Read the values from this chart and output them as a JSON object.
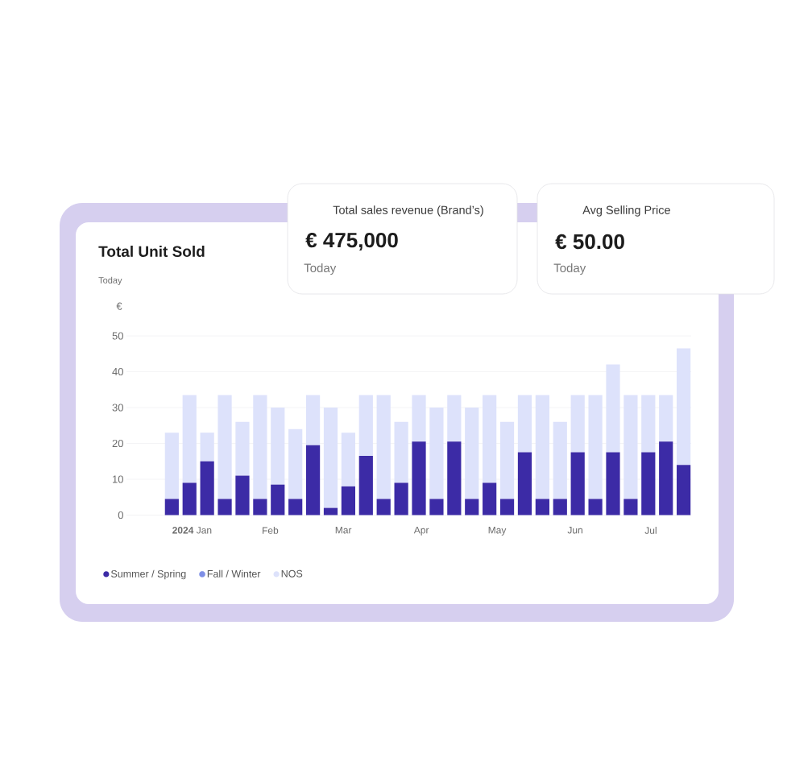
{
  "chart_data": [
    {
      "type": "other",
      "title": "Total sales revenue (Brand’s)",
      "annotations": [
        "€ 475,000",
        "Today"
      ]
    },
    {
      "type": "other",
      "title": "Avg Selling Price",
      "annotations": [
        "€ 50.00",
        "Today"
      ]
    },
    {
      "type": "bar",
      "title": "Total Unit Sold",
      "subtitle": "Today",
      "ylabel": "€",
      "stacked": true,
      "x": [
        "2023-12-24",
        "2023-12-31",
        "2024-01-07",
        "2024-01-14",
        "2024-01-21",
        "2024-01-28",
        "2024-02-04",
        "2024-02-11",
        "2024-02-18",
        "2024-02-25",
        "2024-03-03",
        "2024-03-10",
        "2024-03-17",
        "2024-03-24",
        "2024-03-31",
        "2024-04-07",
        "2024-04-14",
        "2024-04-21",
        "2024-04-28",
        "2024-05-05",
        "2024-05-12",
        "2024-05-19",
        "2024-05-26",
        "2024-06-02",
        "2024-06-09",
        "2024-06-16",
        "2024-06-23",
        "2024-06-30",
        "2024-07-07",
        "2024-07-14"
      ],
      "series": [
        {
          "name": "Summer / Spring",
          "color": "#3c2ba6",
          "values": [
            4.5,
            9,
            15,
            4.5,
            11,
            4.5,
            8.5,
            4.5,
            19.5,
            2,
            8,
            16.5,
            4.5,
            9,
            20.5,
            4.5,
            20.5,
            4.5,
            9,
            4.5,
            17.5,
            4.5,
            4.5,
            17.5,
            4.5,
            17.5,
            4.5,
            17.5,
            20.5,
            14
          ]
        },
        {
          "name": "Fall / Winter",
          "color": "#7e8fe6",
          "values": [
            null,
            null,
            null,
            null,
            null,
            null,
            null,
            null,
            null,
            null,
            null,
            null,
            null,
            null,
            null,
            null,
            null,
            null,
            null,
            null,
            null,
            null,
            null,
            null,
            null,
            null,
            null,
            null,
            null,
            null
          ]
        },
        {
          "name": "NOS",
          "color": "#dde2fb",
          "values": [
            18.5,
            24.5,
            8,
            29,
            15,
            29,
            21.5,
            19.5,
            14,
            28,
            15,
            17,
            29,
            17,
            13,
            25.5,
            13,
            25.5,
            24.5,
            21.5,
            16,
            29,
            21.5,
            16,
            29,
            24.5,
            29,
            16,
            13,
            32.5
          ]
        }
      ],
      "xlim": [
        "2023-12-06",
        "2024-07-17"
      ],
      "xticks": [
        {
          "value": "2024-01-01",
          "label": "**2024** Jan"
        },
        {
          "value": "2024-02-01",
          "label": "Feb"
        },
        {
          "value": "2024-03-01",
          "label": "Mar"
        },
        {
          "value": "2024-04-01",
          "label": "Apr"
        },
        {
          "value": "2024-05-01",
          "label": "May"
        },
        {
          "value": "2024-06-01",
          "label": "Jun"
        },
        {
          "value": "2024-07-01",
          "label": "Jul"
        }
      ],
      "ylim": [
        0,
        50
      ],
      "yticks": [
        0,
        10,
        20,
        30,
        40,
        50
      ],
      "grid": "y",
      "legend": "bottom left"
    }
  ]
}
